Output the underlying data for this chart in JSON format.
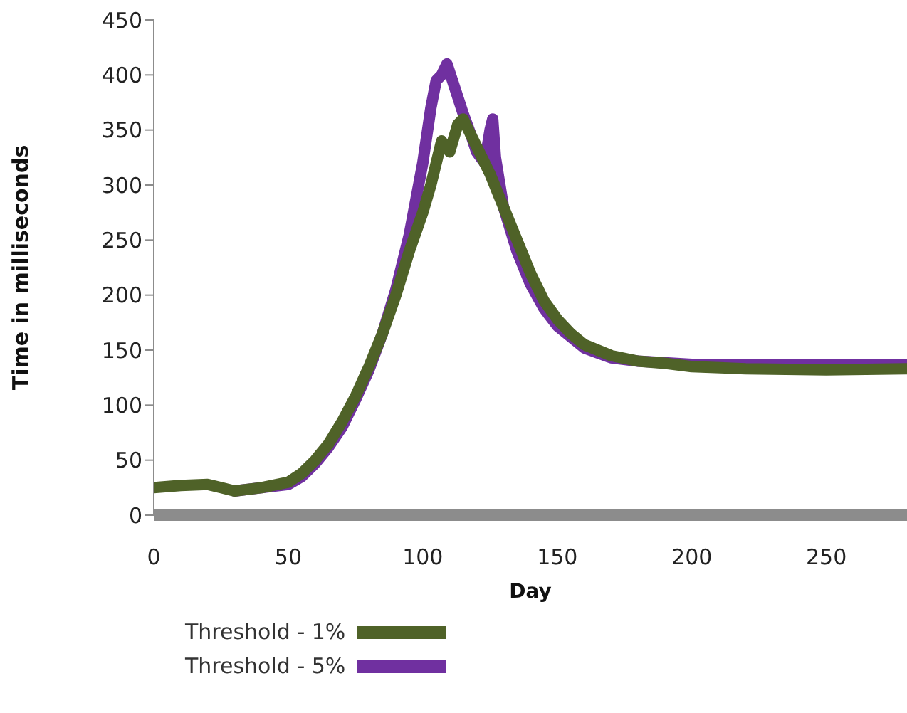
{
  "chart_data": {
    "type": "line",
    "xlabel": "Day",
    "ylabel": "Time in milliseconds",
    "xlim": [
      0,
      280
    ],
    "xticks": [
      0,
      50,
      100,
      150,
      200,
      250
    ],
    "ylim": [
      0,
      450
    ],
    "yticks": [
      0,
      50,
      100,
      150,
      200,
      250,
      300,
      350,
      400,
      450
    ],
    "grid": false,
    "legend": "bottom left",
    "marker": "none",
    "line_style": "solid",
    "series": [
      {
        "name": "Threshold - 5%",
        "color": "#7030a0",
        "x": [
          30,
          40,
          50,
          55,
          60,
          65,
          70,
          75,
          80,
          85,
          90,
          95,
          100,
          103,
          105,
          107,
          109,
          111,
          113,
          115,
          118,
          120,
          123,
          125,
          126,
          127,
          130,
          135,
          140,
          145,
          150,
          160,
          170,
          180,
          200,
          250,
          280
        ],
        "values": [
          22,
          25,
          28,
          35,
          47,
          62,
          80,
          105,
          132,
          165,
          205,
          255,
          320,
          370,
          395,
          400,
          410,
          395,
          380,
          365,
          345,
          330,
          320,
          350,
          360,
          325,
          280,
          240,
          210,
          188,
          172,
          152,
          143,
          140,
          137,
          137,
          137
        ]
      },
      {
        "name": "Threshold - 1%",
        "color": "#4f6228",
        "x": [
          0,
          10,
          20,
          25,
          30,
          40,
          50,
          55,
          60,
          65,
          70,
          75,
          80,
          85,
          90,
          95,
          100,
          103,
          105,
          107,
          110,
          113,
          115,
          118,
          120,
          125,
          130,
          135,
          140,
          145,
          150,
          155,
          160,
          170,
          180,
          190,
          200,
          220,
          250,
          280
        ],
        "values": [
          25,
          27,
          28,
          25,
          22,
          25,
          30,
          38,
          50,
          65,
          85,
          108,
          135,
          165,
          200,
          240,
          275,
          300,
          320,
          340,
          330,
          355,
          360,
          345,
          335,
          310,
          280,
          250,
          220,
          195,
          178,
          165,
          155,
          145,
          140,
          138,
          135,
          133,
          132,
          133
        ]
      }
    ]
  }
}
